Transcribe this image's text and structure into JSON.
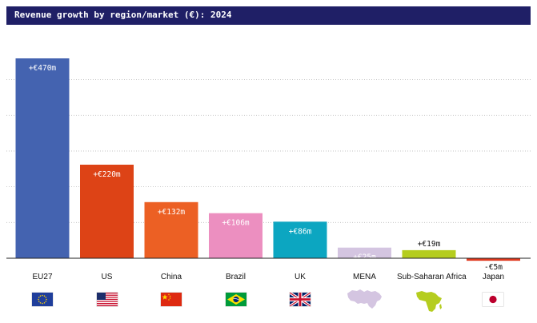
{
  "title": "Revenue growth by region/market (€): 2024",
  "chart_data": {
    "type": "bar",
    "title": "Revenue growth by region/market (€): 2024",
    "xlabel": "",
    "ylabel": "",
    "categories": [
      "EU27",
      "US",
      "China",
      "Brazil",
      "UK",
      "MENA",
      "Sub-Saharan Africa",
      "Japan"
    ],
    "values": [
      470,
      220,
      132,
      106,
      86,
      25,
      19,
      -5
    ],
    "value_labels": [
      "+€470m",
      "+€220m",
      "+€132m",
      "+€106m",
      "+€86m",
      "+€25m",
      "+€19m",
      "-€5m"
    ],
    "unit": "€m",
    "ylim": [
      -10,
      500
    ],
    "grid": true,
    "colors": [
      "#4463b0",
      "#dd4316",
      "#ec6024",
      "#ec8fc0",
      "#0ca6c1",
      "#d4c5e1",
      "#b5cd1f",
      "#e0391f"
    ],
    "label_inside": [
      true,
      true,
      true,
      true,
      true,
      true,
      false,
      false
    ],
    "label_color": [
      "#ffffff",
      "#ffffff",
      "#ffffff",
      "#ffffff",
      "#ffffff",
      "#ffffff",
      "#111111",
      "#111111"
    ]
  },
  "markers": [
    {
      "kind": "flag",
      "icon": "eu-flag-icon"
    },
    {
      "kind": "flag",
      "icon": "us-flag-icon"
    },
    {
      "kind": "flag",
      "icon": "china-flag-icon"
    },
    {
      "kind": "flag",
      "icon": "brazil-flag-icon"
    },
    {
      "kind": "flag",
      "icon": "uk-flag-icon"
    },
    {
      "kind": "map",
      "icon": "mena-map-icon",
      "color": "#d4c5e1"
    },
    {
      "kind": "map",
      "icon": "africa-map-icon",
      "color": "#b5cd1f"
    },
    {
      "kind": "flag",
      "icon": "japan-flag-icon"
    }
  ]
}
